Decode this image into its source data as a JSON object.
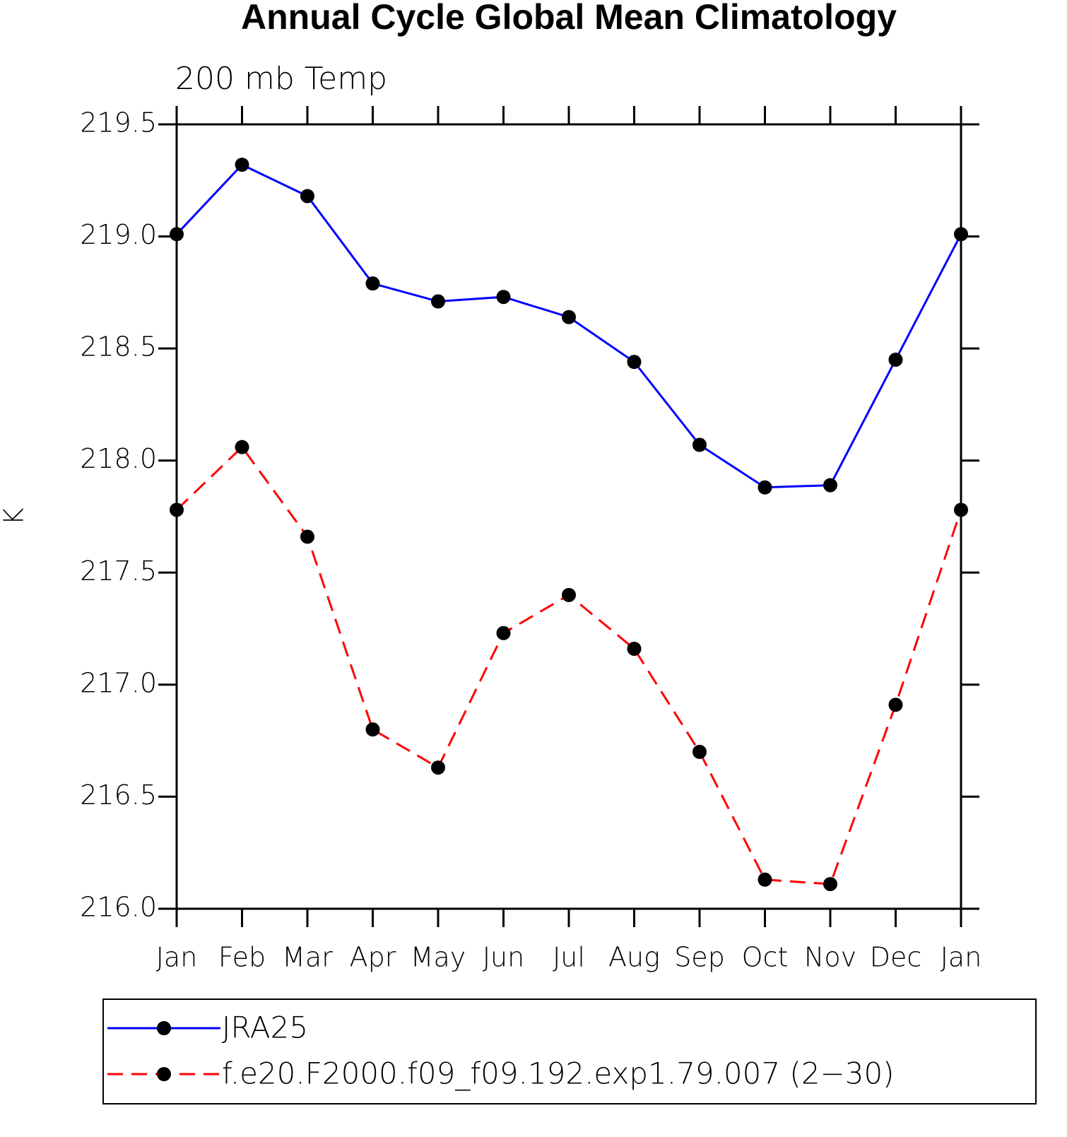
{
  "chart_data": {
    "type": "line",
    "title": "Annual Cycle Global Mean Climatology",
    "subtitle": "200 mb Temp",
    "y_label": "K",
    "categories": [
      "Jan",
      "Feb",
      "Mar",
      "Apr",
      "May",
      "Jun",
      "Jul",
      "Aug",
      "Sep",
      "Oct",
      "Nov",
      "Dec",
      "Jan"
    ],
    "series": [
      {
        "name": "JRA25",
        "color": "#0000ff",
        "linestyle": "solid",
        "marker_color": "#000000",
        "values": [
          219.01,
          219.32,
          219.18,
          218.79,
          218.71,
          218.73,
          218.64,
          218.44,
          218.07,
          217.88,
          217.89,
          218.45,
          219.01
        ]
      },
      {
        "name": "f.e20.F2000.f09_f09.192.exp1.79.007 (2−30)",
        "color": "#ff0000",
        "linestyle": "dashed",
        "marker_color": "#000000",
        "values": [
          217.78,
          218.06,
          217.66,
          216.8,
          216.63,
          217.23,
          217.4,
          217.16,
          216.7,
          216.13,
          216.11,
          216.91,
          217.78
        ]
      }
    ],
    "ylim": [
      216.0,
      219.5
    ],
    "yticks": [
      {
        "value": 216.0,
        "label": "216.0"
      },
      216.5,
      {
        "value": 217.0,
        "label": "217.0"
      },
      217.5,
      {
        "value": 218.0,
        "label": "218.0"
      },
      218.5,
      {
        "value": 219.0,
        "label": "219.0"
      },
      219.5
    ],
    "legend": "bottom"
  }
}
